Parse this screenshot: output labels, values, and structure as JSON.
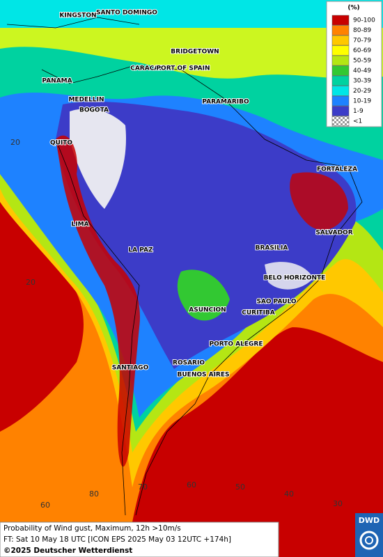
{
  "legend": {
    "title": "(%)",
    "items": [
      {
        "label": "90-100",
        "color": "#c80000"
      },
      {
        "label": "80-89",
        "color": "#ff8200"
      },
      {
        "label": "70-79",
        "color": "#ffc800"
      },
      {
        "label": "60-69",
        "color": "#ffff00"
      },
      {
        "label": "50-59",
        "color": "#b4e614"
      },
      {
        "label": "40-49",
        "color": "#32c832"
      },
      {
        "label": "30-39",
        "color": "#00d2a0"
      },
      {
        "label": "20-29",
        "color": "#00e6e6"
      },
      {
        "label": "10-19",
        "color": "#1e82ff"
      },
      {
        "label": "1-9",
        "color": "#3c3cc8"
      },
      {
        "label": "<1",
        "color": "#c8c8c8"
      }
    ]
  },
  "cities": [
    "KINGSTON",
    "SANTO DOMINGO",
    "BRIDGETOWN",
    "CARACAS",
    "PORT OF SPAIN",
    "PANAMA",
    "PARAMARIBO",
    "MEDELLIN",
    "BOGOTA",
    "QUITO",
    "FORTALEZA",
    "LIMA",
    "SALVADOR",
    "LA PAZ",
    "BRASILIA",
    "BELO HORIZONTE",
    "SAO PAULO",
    "ASUNCION",
    "CURITIBA",
    "PORTO ALEGRE",
    "ROSARIO",
    "SANTIAGO",
    "BUENOS AIRES"
  ],
  "grid_labels": [
    "20",
    "20",
    "60",
    "80",
    "70",
    "60",
    "50",
    "40",
    "30"
  ],
  "caption": {
    "line1": "Probability of Wind gust, Maximum, 12h >10m/s",
    "line2": "FT: Sat 10 May 18 UTC [ICON EPS 2025 May 03 12UTC +174h]",
    "line3": "©2025 Deutscher Wetterdienst"
  },
  "logo": "DWD"
}
